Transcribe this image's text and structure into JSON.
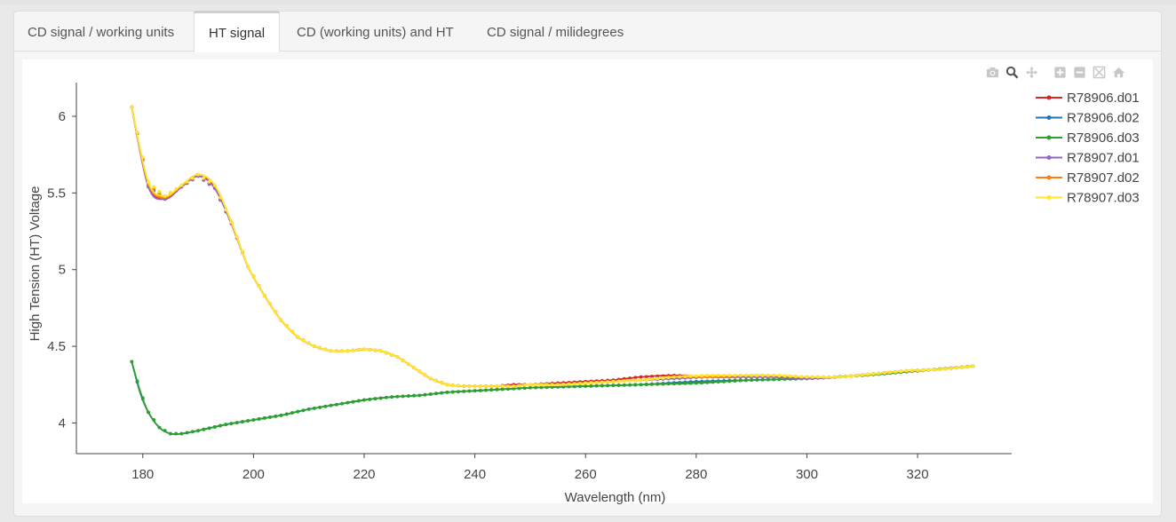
{
  "tabs": [
    {
      "label": "CD signal / working units",
      "active": false
    },
    {
      "label": "HT signal",
      "active": true
    },
    {
      "label": "CD (working units) and HT",
      "active": false
    },
    {
      "label": "CD signal / milidegrees",
      "active": false
    }
  ],
  "modebar": [
    "camera-icon",
    "zoom-icon",
    "pan-icon",
    "zoom-in-icon",
    "zoom-out-icon",
    "autoscale-icon",
    "home-icon"
  ],
  "chart_data": {
    "type": "line",
    "xlabel": "Wavelength (nm)",
    "ylabel": "High Tension (HT) Voltage",
    "xlim": [
      168,
      337
    ],
    "ylim": [
      3.8,
      6.22
    ],
    "xticks": [
      180,
      200,
      220,
      240,
      260,
      280,
      300,
      320
    ],
    "yticks": [
      4,
      4.5,
      5,
      5.5,
      6
    ],
    "ytick_labels": [
      "4",
      "4.5",
      "5",
      "5.5",
      "6"
    ],
    "legend_position": "top-right",
    "series": [
      {
        "name": "R78906.d01",
        "color": "#d62728",
        "group": "high",
        "x": [
          178,
          181,
          184,
          187,
          190,
          193,
          196,
          199,
          202,
          205,
          208,
          211,
          214,
          217,
          220,
          223,
          226,
          229,
          232,
          235,
          238,
          241,
          244,
          247,
          250,
          255,
          260,
          265,
          270,
          276,
          282,
          288,
          294,
          300,
          306,
          312,
          318,
          324,
          330
        ],
        "y": [
          6.06,
          5.55,
          5.46,
          5.54,
          5.61,
          5.54,
          5.3,
          5.02,
          4.83,
          4.67,
          4.56,
          4.5,
          4.47,
          4.47,
          4.48,
          4.47,
          4.43,
          4.36,
          4.29,
          4.25,
          4.24,
          4.24,
          4.24,
          4.25,
          4.25,
          4.26,
          4.27,
          4.28,
          4.3,
          4.31,
          4.3,
          4.3,
          4.3,
          4.29,
          4.3,
          4.32,
          4.34,
          4.35,
          4.37
        ]
      },
      {
        "name": "R78906.d02",
        "color": "#1f77b4",
        "group": "low",
        "x": [
          178,
          179.5,
          181,
          183,
          185,
          187,
          190,
          195,
          200,
          205,
          210,
          215,
          220,
          225,
          230,
          235,
          240,
          245,
          250,
          260,
          270,
          280,
          290,
          300,
          310,
          320,
          330
        ],
        "y": [
          4.4,
          4.2,
          4.07,
          3.97,
          3.93,
          3.93,
          3.95,
          3.99,
          4.02,
          4.05,
          4.09,
          4.12,
          4.15,
          4.17,
          4.18,
          4.2,
          4.21,
          4.22,
          4.23,
          4.24,
          4.25,
          4.27,
          4.28,
          4.29,
          4.31,
          4.34,
          4.37
        ]
      },
      {
        "name": "R78906.d03",
        "color": "#2ca02c",
        "group": "low",
        "x": [
          178,
          179.5,
          181,
          183,
          185,
          187,
          190,
          195,
          200,
          205,
          210,
          215,
          220,
          225,
          230,
          235,
          240,
          245,
          250,
          260,
          270,
          280,
          290,
          300,
          310,
          320,
          330
        ],
        "y": [
          4.4,
          4.21,
          4.07,
          3.97,
          3.93,
          3.93,
          3.95,
          3.99,
          4.02,
          4.05,
          4.09,
          4.12,
          4.15,
          4.17,
          4.18,
          4.2,
          4.21,
          4.22,
          4.23,
          4.24,
          4.25,
          4.26,
          4.28,
          4.29,
          4.31,
          4.34,
          4.37
        ]
      },
      {
        "name": "R78907.d01",
        "color": "#9467bd",
        "group": "high",
        "x": [
          178,
          181,
          184,
          187,
          190,
          193,
          196,
          199,
          202,
          205,
          208,
          211,
          214,
          217,
          220,
          223,
          226,
          229,
          232,
          235,
          238,
          241,
          244,
          247,
          250,
          255,
          260,
          265,
          270,
          276,
          282,
          288,
          294,
          300,
          306,
          312,
          318,
          324,
          330
        ],
        "y": [
          6.06,
          5.54,
          5.46,
          5.54,
          5.61,
          5.53,
          5.3,
          5.02,
          4.83,
          4.67,
          4.56,
          4.5,
          4.47,
          4.47,
          4.48,
          4.47,
          4.43,
          4.36,
          4.29,
          4.25,
          4.24,
          4.24,
          4.24,
          4.24,
          4.25,
          4.25,
          4.26,
          4.27,
          4.28,
          4.29,
          4.3,
          4.3,
          4.3,
          4.29,
          4.3,
          4.32,
          4.34,
          4.35,
          4.37
        ]
      },
      {
        "name": "R78907.d02",
        "color": "#ff7f0e",
        "group": "high",
        "x": [
          178,
          181,
          184,
          187,
          190,
          193,
          196,
          199,
          202,
          205,
          208,
          211,
          214,
          217,
          220,
          223,
          226,
          229,
          232,
          235,
          238,
          241,
          244,
          247,
          250,
          255,
          260,
          265,
          270,
          276,
          282,
          288,
          294,
          300,
          306,
          312,
          318,
          324,
          330
        ],
        "y": [
          6.06,
          5.56,
          5.47,
          5.55,
          5.62,
          5.55,
          5.31,
          5.02,
          4.83,
          4.67,
          4.56,
          4.5,
          4.47,
          4.47,
          4.48,
          4.47,
          4.43,
          4.36,
          4.29,
          4.25,
          4.24,
          4.24,
          4.24,
          4.24,
          4.25,
          4.25,
          4.26,
          4.27,
          4.28,
          4.3,
          4.3,
          4.31,
          4.31,
          4.3,
          4.3,
          4.32,
          4.34,
          4.35,
          4.37
        ]
      },
      {
        "name": "R78907.d03",
        "color": "#ffe629",
        "group": "high",
        "x": [
          178,
          181,
          184,
          187,
          190,
          193,
          196,
          199,
          202,
          205,
          208,
          211,
          214,
          217,
          220,
          223,
          226,
          229,
          232,
          235,
          238,
          241,
          244,
          247,
          250,
          255,
          260,
          265,
          270,
          276,
          282,
          288,
          294,
          300,
          306,
          312,
          318,
          324,
          330
        ],
        "y": [
          6.06,
          5.57,
          5.48,
          5.55,
          5.62,
          5.55,
          5.31,
          5.02,
          4.83,
          4.67,
          4.56,
          4.5,
          4.47,
          4.47,
          4.48,
          4.47,
          4.43,
          4.36,
          4.29,
          4.25,
          4.24,
          4.24,
          4.24,
          4.24,
          4.25,
          4.25,
          4.26,
          4.27,
          4.28,
          4.3,
          4.31,
          4.31,
          4.31,
          4.3,
          4.3,
          4.32,
          4.34,
          4.35,
          4.37
        ]
      }
    ]
  }
}
